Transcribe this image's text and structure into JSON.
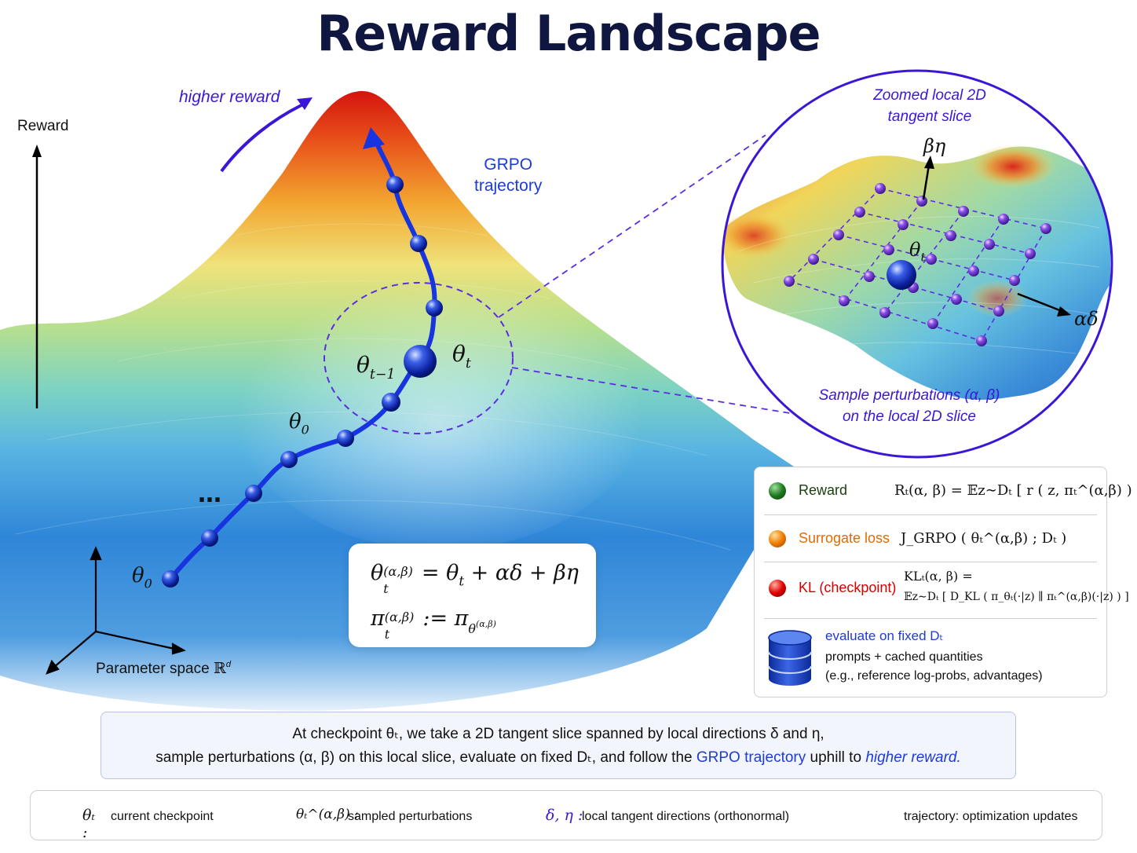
{
  "title": "Reward Landscape",
  "axes": {
    "reward_label": "Reward",
    "param_label": "Parameter space",
    "param_symbol": "ℝ",
    "param_sup": "d"
  },
  "annotations": {
    "higher_reward": "higher reward",
    "grpo_line1": "GRPO",
    "grpo_line2": "trajectory",
    "theta": "θ",
    "sub_t": "t",
    "sub_tm1": "t−1",
    "sub_0": "0",
    "ellipsis": "…"
  },
  "zoom": {
    "title_line1": "Zoomed local 2D",
    "title_line2": "tangent slice",
    "dir_eta": "βη",
    "dir_delta": "αδ",
    "caption_line1": "Sample perturbations (α, β)",
    "caption_line2": "on the local 2D slice"
  },
  "equations": {
    "eq1_lhs": "θ",
    "eq1_sub": "t",
    "eq1_sup": "(α,β)",
    "eq1_rhs": "= θ",
    "eq1_tail": "+ αδ + βη",
    "eq2_lhs": "π",
    "eq2_sub": "t",
    "eq2_sup": "(α,β)",
    "eq2_mid": ":= π",
    "eq2_subtheta": "θ",
    "eq2_subsub": "t",
    "eq2_subsup": "(α,β)"
  },
  "legend": {
    "reward": {
      "name": "Reward",
      "color": "#1f7a1f",
      "formula": "Rₜ(α, β) = 𝔼z∼Dₜ [ r ( z, πₜ^(α,β) ) ]"
    },
    "surrogate": {
      "name": "Surrogate loss",
      "color": "#f07d00",
      "formula": "J_GRPO ( θₜ^(α,β) ; Dₜ )"
    },
    "kl": {
      "name": "KL (checkpoint)",
      "color": "#e00000",
      "formula_line1": "KLₜ(α, β) =",
      "formula_line2": "𝔼z∼Dₜ [ D_KL ( π_θₜ(·|z) ∥ πₜ^(α,β)(·|z) ) ]"
    },
    "evaluate_title": "evaluate on fixed Dₜ",
    "evaluate_line1": "prompts + cached quantities",
    "evaluate_line2": "(e.g., reference log-probs, advantages)"
  },
  "caption": {
    "line1": "At checkpoint θₜ, we take a 2D tangent slice spanned by local directions δ and η,",
    "line2_a": "sample perturbations (α, β) on this local slice, evaluate on fixed Dₜ, and follow the",
    "line2_b": "GRPO trajectory",
    "line2_c": "uphill to",
    "line2_d": "higher reward."
  },
  "bottom_legend": {
    "checkpoint_sym": "θₜ :",
    "checkpoint_text": "current checkpoint",
    "perturb_sym": "θₜ^(α,β) :",
    "perturb_text": "sampled perturbations",
    "dirs_sym": "δ, η :",
    "dirs_text": "local tangent directions (orthonormal)",
    "traj_text": "trajectory: optimization updates"
  },
  "colors": {
    "accent_blue": "#1e3bd6",
    "accent_purple": "#5a2ee0",
    "title": "#0f1640"
  }
}
